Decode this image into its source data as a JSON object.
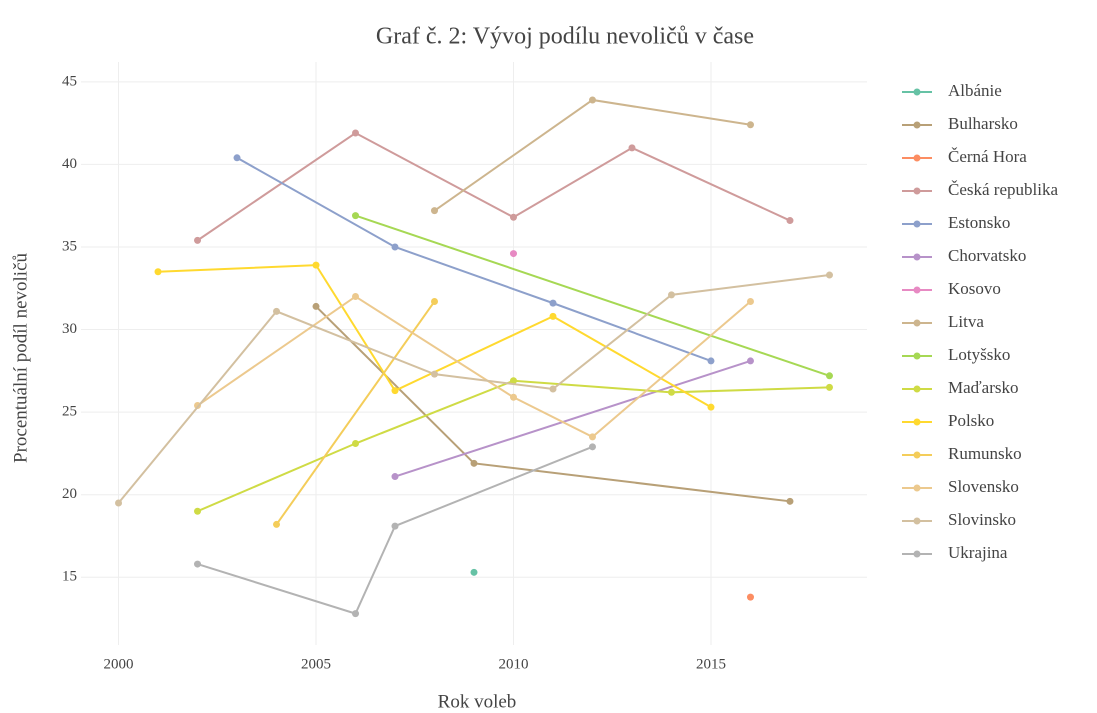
{
  "chart_data": {
    "type": "line",
    "title": "Graf č. 2: Vývoj podílu nevoličů v čase",
    "x_label": "Rok voleb",
    "y_label": "Procentuální podíl nevoličů",
    "xlim": [
      1999.05,
      2018.95
    ],
    "xticks": [
      2000,
      2005,
      2010,
      2015
    ],
    "ylim": [
      10.9,
      46.2
    ],
    "yticks": [
      15,
      20,
      25,
      30,
      35,
      40,
      45
    ],
    "grid": true,
    "legend": "right",
    "series": [
      {
        "name": "Albánie",
        "color": "#66c2a5",
        "x": [
          2009
        ],
        "values": [
          15.3
        ]
      },
      {
        "name": "Bulharsko",
        "color": "#b8a077",
        "x": [
          2005,
          2009,
          2017
        ],
        "values": [
          31.4,
          21.9,
          19.6
        ]
      },
      {
        "name": "Černá Hora",
        "color": "#fc8d62",
        "x": [
          2016
        ],
        "values": [
          13.8
        ]
      },
      {
        "name": "Česká republika",
        "color": "#cf9b9b",
        "x": [
          2002,
          2006,
          2010,
          2013,
          2017
        ],
        "values": [
          35.4,
          41.9,
          36.8,
          41.0,
          36.6
        ]
      },
      {
        "name": "Estonsko",
        "color": "#8da0cb",
        "x": [
          2003,
          2007,
          2011,
          2015
        ],
        "values": [
          40.4,
          35.0,
          31.6,
          28.1
        ]
      },
      {
        "name": "Chorvatsko",
        "color": "#b792c9",
        "x": [
          2007,
          2016
        ],
        "values": [
          21.1,
          28.1
        ]
      },
      {
        "name": "Kosovo",
        "color": "#e78ac3",
        "x": [
          2010
        ],
        "values": [
          34.6
        ]
      },
      {
        "name": "Litva",
        "color": "#cdb58e",
        "x": [
          2008,
          2012,
          2016
        ],
        "values": [
          37.2,
          43.9,
          42.4
        ]
      },
      {
        "name": "Lotyšsko",
        "color": "#a6d854",
        "x": [
          2006,
          2018
        ],
        "values": [
          36.9,
          27.2
        ]
      },
      {
        "name": "Maďarsko",
        "color": "#cfdb45",
        "x": [
          2002,
          2006,
          2010,
          2014,
          2018
        ],
        "values": [
          19.0,
          23.1,
          26.9,
          26.2,
          26.5
        ]
      },
      {
        "name": "Polsko",
        "color": "#ffd92f",
        "x": [
          2001,
          2005,
          2007,
          2011,
          2015
        ],
        "values": [
          33.5,
          33.9,
          26.3,
          30.8,
          25.3
        ]
      },
      {
        "name": "Rumunsko",
        "color": "#f4cd5a",
        "x": [
          2004,
          2008
        ],
        "values": [
          18.2,
          31.7
        ]
      },
      {
        "name": "Slovensko",
        "color": "#ecc98e",
        "x": [
          2002,
          2006,
          2010,
          2012,
          2016
        ],
        "values": [
          25.4,
          32.0,
          25.9,
          23.5,
          31.7
        ]
      },
      {
        "name": "Slovinsko",
        "color": "#d3c0a0",
        "x": [
          2000,
          2004,
          2008,
          2011,
          2014,
          2018
        ],
        "values": [
          19.5,
          31.1,
          27.3,
          26.4,
          32.1,
          33.3
        ]
      },
      {
        "name": "Ukrajina",
        "color": "#b3b3b3",
        "x": [
          2002,
          2006,
          2007,
          2012
        ],
        "values": [
          15.8,
          12.8,
          18.1,
          22.9
        ]
      }
    ]
  }
}
